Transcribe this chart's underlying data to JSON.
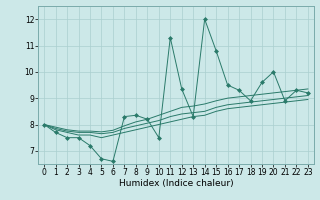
{
  "xlabel": "Humidex (Indice chaleur)",
  "xlim": [
    -0.5,
    23.5
  ],
  "ylim": [
    6.5,
    12.5
  ],
  "xticks": [
    0,
    1,
    2,
    3,
    4,
    5,
    6,
    7,
    8,
    9,
    10,
    11,
    12,
    13,
    14,
    15,
    16,
    17,
    18,
    19,
    20,
    21,
    22,
    23
  ],
  "yticks": [
    7,
    8,
    9,
    10,
    11,
    12
  ],
  "bg_color": "#cce8e8",
  "grid_color": "#aacfcf",
  "line_color": "#2a7a6a",
  "main_series": [
    8.0,
    7.7,
    7.5,
    7.5,
    7.2,
    6.7,
    6.6,
    8.3,
    8.35,
    8.2,
    7.5,
    11.3,
    9.35,
    8.3,
    12.0,
    10.8,
    9.5,
    9.3,
    8.9,
    9.6,
    10.0,
    8.9,
    9.3,
    9.2
  ],
  "trend_lines": [
    [
      8.0,
      7.8,
      7.7,
      7.6,
      7.6,
      7.5,
      7.6,
      7.7,
      7.8,
      7.9,
      8.0,
      8.1,
      8.2,
      8.3,
      8.35,
      8.5,
      8.6,
      8.65,
      8.7,
      8.75,
      8.8,
      8.85,
      8.9,
      8.95
    ],
    [
      8.0,
      7.85,
      7.75,
      7.7,
      7.7,
      7.65,
      7.7,
      7.85,
      7.95,
      8.05,
      8.15,
      8.3,
      8.4,
      8.45,
      8.5,
      8.65,
      8.75,
      8.8,
      8.85,
      8.9,
      8.95,
      9.0,
      9.05,
      9.1
    ],
    [
      8.0,
      7.9,
      7.8,
      7.75,
      7.75,
      7.72,
      7.78,
      7.95,
      8.1,
      8.2,
      8.35,
      8.5,
      8.65,
      8.7,
      8.78,
      8.9,
      9.0,
      9.05,
      9.1,
      9.15,
      9.2,
      9.25,
      9.3,
      9.35
    ]
  ]
}
